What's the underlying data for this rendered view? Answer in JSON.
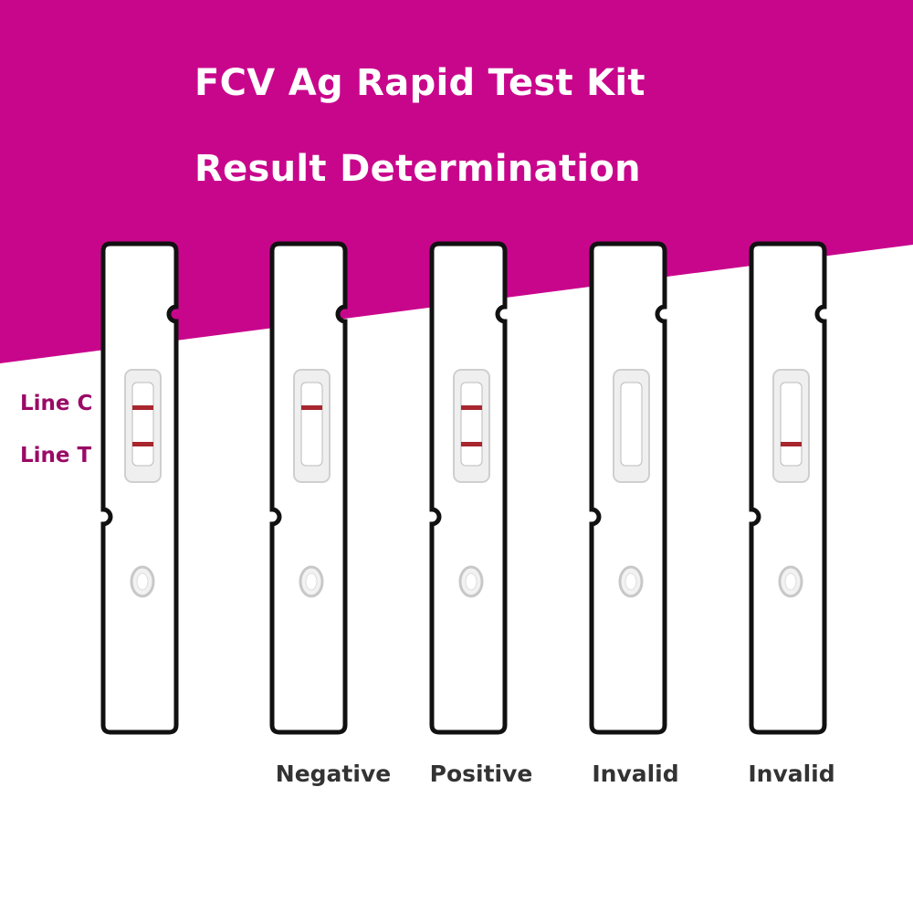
{
  "header": {
    "title": "FCV Ag Rapid Test Kit",
    "subtitle": "Result Determination"
  },
  "colors": {
    "banner": "#C8068C",
    "line": "#A8262E",
    "label": "#9A0A66"
  },
  "legend": {
    "line_c": "Line C",
    "line_t": "Line T"
  },
  "strips": [
    {
      "label": "",
      "line_c": true,
      "line_t": true
    },
    {
      "label": "Negative",
      "line_c": true,
      "line_t": false
    },
    {
      "label": "Positive",
      "line_c": true,
      "line_t": true
    },
    {
      "label": "Invalid",
      "line_c": false,
      "line_t": false
    },
    {
      "label": "Invalid",
      "line_c": false,
      "line_t": true
    }
  ]
}
